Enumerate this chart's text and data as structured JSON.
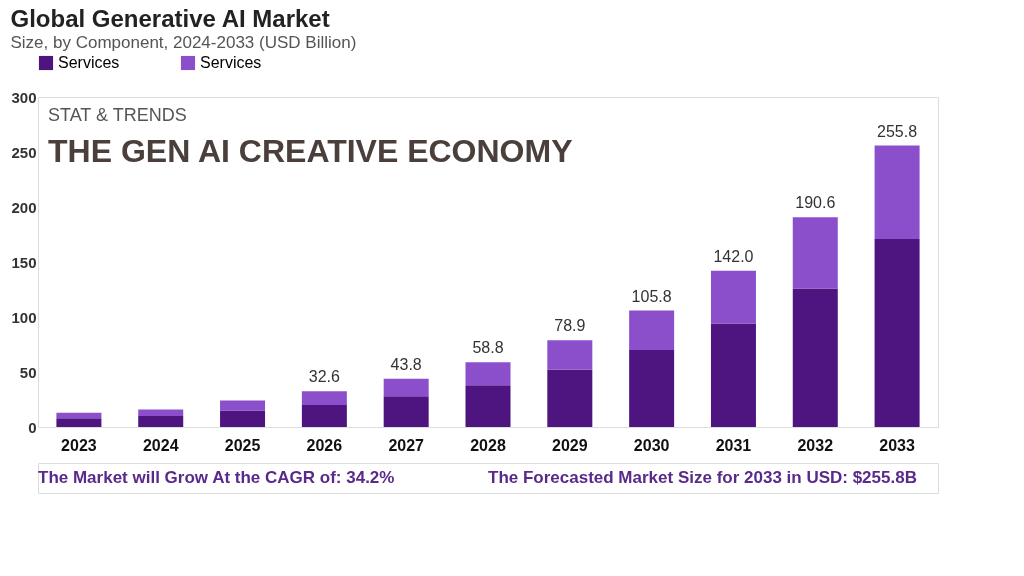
{
  "chart_data": {
    "type": "bar",
    "title": "Global Generative AI Market",
    "subtitle": "Size, by Component, 2024-2033 (USD Billion)",
    "categories": [
      "2023",
      "2024",
      "2025",
      "2026",
      "2027",
      "2028",
      "2029",
      "2030",
      "2031",
      "2032",
      "2033"
    ],
    "stacked": true,
    "series": [
      {
        "name": "Services",
        "color": "#4e1580",
        "values": [
          8,
          10,
          15,
          20,
          28,
          38,
          52,
          70,
          94,
          126,
          171
        ]
      },
      {
        "name": "Services",
        "color": "#8b4fcc",
        "values": [
          5,
          6,
          9,
          12.6,
          15.8,
          20.8,
          26.9,
          35.8,
          48,
          64.6,
          84.8
        ]
      }
    ],
    "totals": [
      null,
      null,
      null,
      "32.6",
      "43.8",
      "58.8",
      "78.9",
      "105.8",
      "142.0",
      "190.6",
      "255.8"
    ],
    "ylim": [
      0,
      300
    ],
    "yticks": [
      0,
      50,
      100,
      150,
      200,
      250,
      300
    ],
    "grid": false,
    "legend": "top",
    "annotations": [
      "STAT & TRENDS",
      "THE GEN AI CREATIVE ECONOMY",
      "The Market will Grow At the CAGR of: 34.2%",
      "The Forecasted Market Size for 2033 in USD: $255.8B"
    ]
  }
}
